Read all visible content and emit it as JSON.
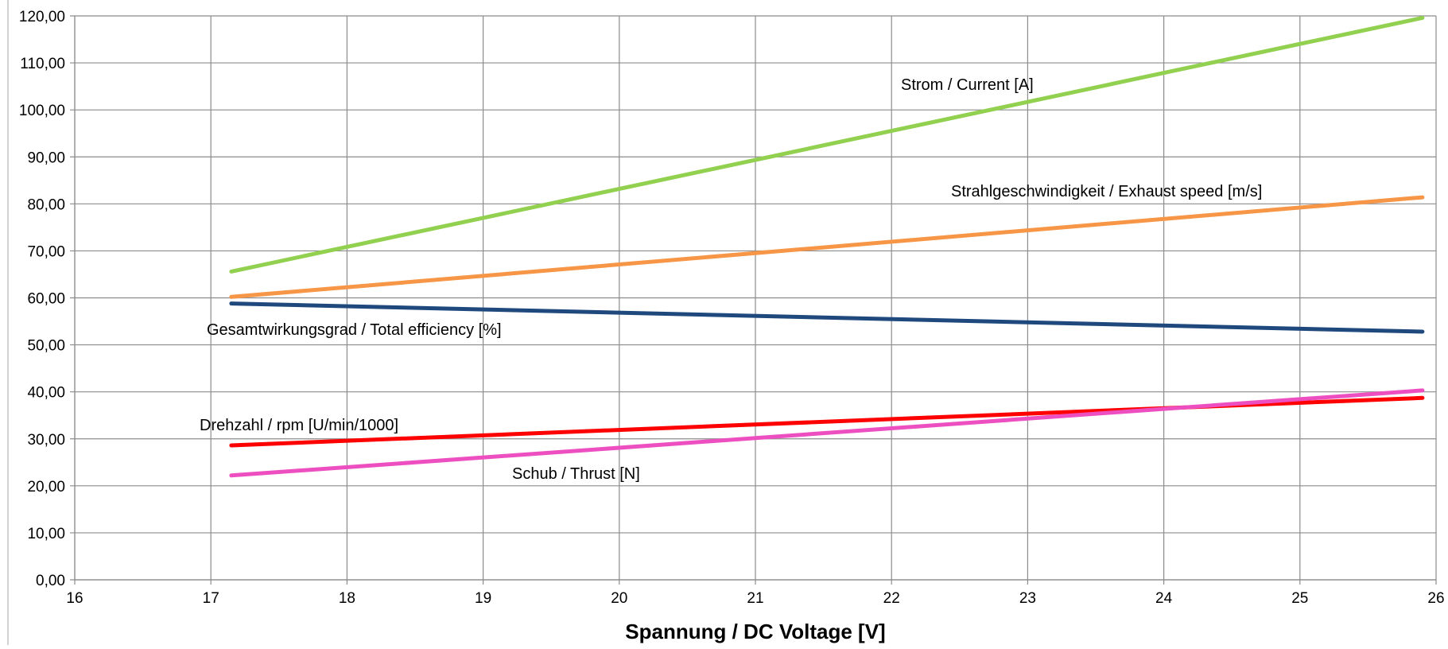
{
  "chart_data": {
    "type": "line",
    "title": "",
    "xlabel": "Spannung / DC Voltage [V]",
    "ylabel": "",
    "xlim": [
      16,
      26
    ],
    "ylim": [
      0,
      120
    ],
    "x_ticks": [
      16,
      17,
      18,
      19,
      20,
      21,
      22,
      23,
      24,
      25,
      26
    ],
    "y_ticks": [
      "0,00",
      "10,00",
      "20,00",
      "30,00",
      "40,00",
      "50,00",
      "60,00",
      "70,00",
      "80,00",
      "90,00",
      "100,00",
      "110,00",
      "120,00"
    ],
    "grid": true,
    "legend": "none",
    "series": [
      {
        "name": "Strom / Current [A]",
        "color": "#92d050",
        "x": [
          17.15,
          25.9
        ],
        "y": [
          65.6,
          119.6
        ]
      },
      {
        "name": "Strahlgeschwindigkeit / Exhaust speed [m/s]",
        "color": "#f79646",
        "x": [
          17.15,
          25.9
        ],
        "y": [
          60.2,
          81.4
        ]
      },
      {
        "name": "Gesamtwirkungsgrad / Total efficiency [%]",
        "color": "#1f497d",
        "x": [
          17.15,
          25.9
        ],
        "y": [
          58.8,
          52.8
        ]
      },
      {
        "name": "Drehzahl / rpm [U/min/1000]",
        "color": "#ff0000",
        "x": [
          17.15,
          25.9
        ],
        "y": [
          28.6,
          38.7
        ]
      },
      {
        "name": "Schub / Thrust [N]",
        "color": "#ee4fc0",
        "x": [
          17.15,
          25.9
        ],
        "y": [
          22.2,
          40.3
        ]
      }
    ]
  }
}
